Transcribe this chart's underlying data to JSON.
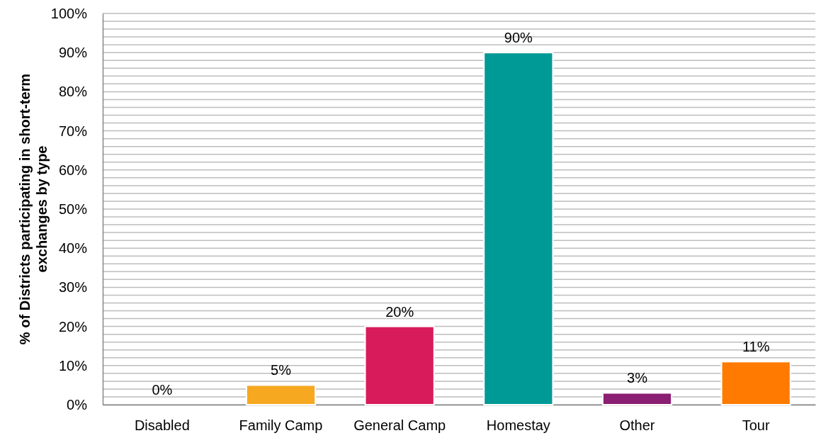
{
  "chart_data": {
    "type": "bar",
    "ylabel": "% of Districts participating in short-term exchanges by type",
    "categories": [
      "Disabled",
      "Family Camp",
      "General Camp",
      "Homestay",
      "Other",
      "Tour"
    ],
    "values": [
      0,
      5,
      20,
      90,
      3,
      11
    ],
    "colors": [
      "#7f7f7f",
      "#f6a821",
      "#d81b5a",
      "#009a96",
      "#8b1f73",
      "#ff7a00"
    ],
    "value_labels": [
      "0%",
      "5%",
      "20%",
      "90%",
      "3%",
      "11%"
    ],
    "ylim": [
      0,
      100
    ],
    "yticks": [
      {
        "value": 0,
        "label": "0%"
      },
      {
        "value": 2,
        "label": null
      },
      {
        "value": 4,
        "label": null
      },
      {
        "value": 6,
        "label": null
      },
      {
        "value": 8,
        "label": null
      },
      {
        "value": 10,
        "label": "10%"
      },
      {
        "value": 12,
        "label": null
      },
      {
        "value": 14,
        "label": null
      },
      {
        "value": 16,
        "label": null
      },
      {
        "value": 18,
        "label": null
      },
      {
        "value": 20,
        "label": "20%"
      },
      {
        "value": 22,
        "label": null
      },
      {
        "value": 24,
        "label": null
      },
      {
        "value": 26,
        "label": null
      },
      {
        "value": 28,
        "label": null
      },
      {
        "value": 30,
        "label": "30%"
      },
      {
        "value": 32,
        "label": null
      },
      {
        "value": 34,
        "label": null
      },
      {
        "value": 36,
        "label": null
      },
      {
        "value": 38,
        "label": null
      },
      {
        "value": 40,
        "label": "40%"
      },
      {
        "value": 42,
        "label": null
      },
      {
        "value": 44,
        "label": null
      },
      {
        "value": 46,
        "label": null
      },
      {
        "value": 48,
        "label": null
      },
      {
        "value": 50,
        "label": "50%"
      },
      {
        "value": 52,
        "label": null
      },
      {
        "value": 54,
        "label": null
      },
      {
        "value": 56,
        "label": null
      },
      {
        "value": 58,
        "label": null
      },
      {
        "value": 60,
        "label": "60%"
      },
      {
        "value": 62,
        "label": null
      },
      {
        "value": 64,
        "label": null
      },
      {
        "value": 66,
        "label": null
      },
      {
        "value": 68,
        "label": null
      },
      {
        "value": 70,
        "label": "70%"
      },
      {
        "value": 72,
        "label": null
      },
      {
        "value": 74,
        "label": null
      },
      {
        "value": 76,
        "label": null
      },
      {
        "value": 78,
        "label": null
      },
      {
        "value": 80,
        "label": "80%"
      },
      {
        "value": 82,
        "label": null
      },
      {
        "value": 84,
        "label": null
      },
      {
        "value": 86,
        "label": null
      },
      {
        "value": 88,
        "label": null
      },
      {
        "value": 90,
        "label": "90%"
      },
      {
        "value": 92,
        "label": null
      },
      {
        "value": 94,
        "label": null
      },
      {
        "value": 96,
        "label": null
      },
      {
        "value": 98,
        "label": null
      },
      {
        "value": 100,
        "label": "100%"
      }
    ],
    "grid": "y"
  }
}
